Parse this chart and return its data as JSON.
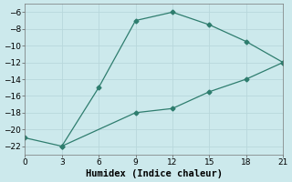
{
  "xlabel": "Humidex (Indice chaleur)",
  "line1_x": [
    0,
    3,
    6,
    9,
    12,
    15,
    18,
    21
  ],
  "line1_y": [
    -21,
    -22,
    -15,
    -7,
    -6,
    -7.5,
    -9.5,
    -12
  ],
  "line2_x": [
    3,
    9,
    12,
    15,
    18,
    21
  ],
  "line2_y": [
    -22,
    -18,
    -17.5,
    -15.5,
    -14,
    -12
  ],
  "color": "#2e7d6e",
  "bg_color": "#cce9ec",
  "grid_color": "#b8d8dc",
  "xlim": [
    0,
    21
  ],
  "ylim": [
    -23,
    -5
  ],
  "xticks": [
    0,
    3,
    6,
    9,
    12,
    15,
    18,
    21
  ],
  "yticks": [
    -22,
    -20,
    -18,
    -16,
    -14,
    -12,
    -10,
    -8,
    -6
  ],
  "marker": "D",
  "markersize": 2.5,
  "linewidth": 0.9,
  "tick_fontsize": 6.5,
  "label_fontsize": 7.5
}
